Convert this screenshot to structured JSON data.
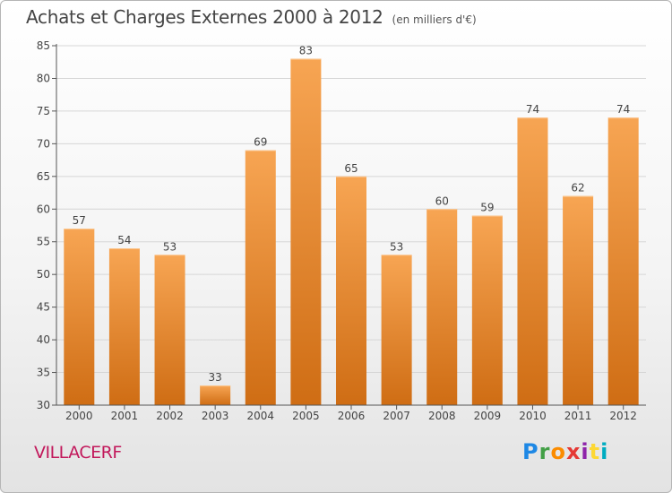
{
  "header": {
    "title": "Achats et Charges Externes 2000 à 2012",
    "unit": "(en milliers d'€)"
  },
  "footer": {
    "commune": "VILLACERF",
    "logo_text": "Proxiti"
  },
  "colors": {
    "bar_top": "#f7a553",
    "bar_bottom": "#cf6d14",
    "grid": "#d6d6d6",
    "axis": "#555555",
    "text": "#444444"
  },
  "chart_data": {
    "type": "bar",
    "title": "Achats et Charges Externes 2000 à 2012",
    "subtitle": "(en milliers d'€)",
    "categories": [
      "2000",
      "2001",
      "2002",
      "2003",
      "2004",
      "2005",
      "2006",
      "2007",
      "2008",
      "2009",
      "2010",
      "2011",
      "2012"
    ],
    "values": [
      57,
      54,
      53,
      33,
      69,
      83,
      65,
      53,
      60,
      59,
      74,
      62,
      74
    ],
    "ylim": [
      30,
      85
    ],
    "yticks": [
      30,
      35,
      40,
      45,
      50,
      55,
      60,
      65,
      70,
      75,
      80,
      85
    ],
    "grid": true,
    "legend": "none",
    "xlabel": "",
    "ylabel": ""
  }
}
